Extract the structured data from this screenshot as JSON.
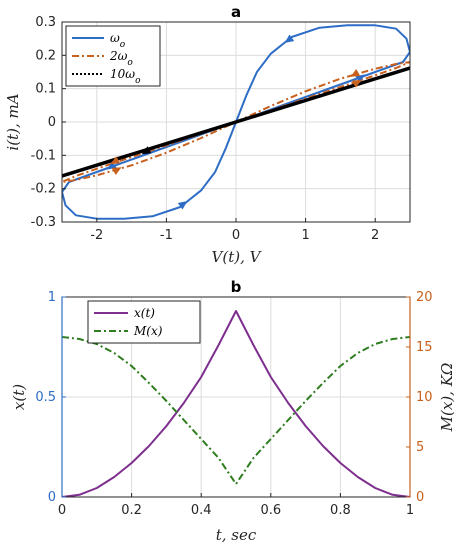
{
  "chart_data": [
    {
      "type": "line",
      "title": "a",
      "xlabel": "V(t),  V",
      "ylabel": "i(t),  mA",
      "xlim": [
        -2.5,
        2.5
      ],
      "ylim": [
        -0.3,
        0.3
      ],
      "xticks": [
        "-2",
        "-1",
        "0",
        "1",
        "2"
      ],
      "xtick_values": [
        -2,
        -1,
        0,
        1,
        2
      ],
      "yticks": [
        "-0.3",
        "-0.2",
        "-0.1",
        "0",
        "0.1",
        "0.2",
        "0.3"
      ],
      "ytick_values": [
        -0.3,
        -0.2,
        -0.1,
        0,
        0.1,
        0.2,
        0.3
      ],
      "grid": true,
      "legend_position": "top-left",
      "series": [
        {
          "name": "ω_o",
          "legend": "ωo",
          "color": "#2E6DC6",
          "style": "solid",
          "points": [
            [
              0,
              0
            ],
            [
              0.15,
              0.08
            ],
            [
              0.3,
              0.15
            ],
            [
              0.5,
              0.205
            ],
            [
              0.8,
              0.255
            ],
            [
              1.2,
              0.283
            ],
            [
              1.6,
              0.29
            ],
            [
              2,
              0.29
            ],
            [
              2.3,
              0.28
            ],
            [
              2.45,
              0.25
            ],
            [
              2.5,
              0.21
            ],
            [
              2.4,
              0.18
            ],
            [
              2.2,
              0.165
            ],
            [
              1.8,
              0.135
            ],
            [
              1.4,
              0.105
            ],
            [
              1,
              0.075
            ],
            [
              0.6,
              0.045
            ],
            [
              0.3,
              0.022
            ],
            [
              0,
              0
            ],
            [
              -0.15,
              -0.08
            ],
            [
              -0.3,
              -0.15
            ],
            [
              -0.5,
              -0.205
            ],
            [
              -0.8,
              -0.255
            ],
            [
              -1.2,
              -0.283
            ],
            [
              -1.6,
              -0.29
            ],
            [
              -2,
              -0.29
            ],
            [
              -2.3,
              -0.28
            ],
            [
              -2.45,
              -0.25
            ],
            [
              -2.5,
              -0.21
            ],
            [
              -2.4,
              -0.18
            ],
            [
              -2.2,
              -0.165
            ],
            [
              -1.8,
              -0.135
            ],
            [
              -1.4,
              -0.105
            ],
            [
              -1,
              -0.075
            ],
            [
              -0.6,
              -0.045
            ],
            [
              -0.3,
              -0.022
            ],
            [
              0,
              0
            ]
          ]
        },
        {
          "name": "2ω_o",
          "legend": "2ωo",
          "color": "#C8601E",
          "style": "dashdot",
          "points": [
            [
              0,
              0
            ],
            [
              0.5,
              0.048
            ],
            [
              1,
              0.092
            ],
            [
              1.5,
              0.13
            ],
            [
              2,
              0.16
            ],
            [
              2.3,
              0.174
            ],
            [
              2.5,
              0.18
            ],
            [
              2.3,
              0.162
            ],
            [
              2,
              0.14
            ],
            [
              1.5,
              0.105
            ],
            [
              1,
              0.07
            ],
            [
              0.5,
              0.035
            ],
            [
              0,
              0
            ],
            [
              -0.5,
              -0.048
            ],
            [
              -1,
              -0.092
            ],
            [
              -1.5,
              -0.13
            ],
            [
              -2,
              -0.16
            ],
            [
              -2.3,
              -0.174
            ],
            [
              -2.5,
              -0.18
            ],
            [
              -2.3,
              -0.162
            ],
            [
              -2,
              -0.14
            ],
            [
              -1.5,
              -0.105
            ],
            [
              -1,
              -0.07
            ],
            [
              -0.5,
              -0.035
            ],
            [
              0,
              0
            ]
          ]
        },
        {
          "name": "10ω_o",
          "legend": "10ωo",
          "color": "#000000",
          "style": "dotted",
          "points": [
            [
              -2.5,
              -0.162
            ],
            [
              2.5,
              0.162
            ]
          ]
        }
      ]
    },
    {
      "type": "line",
      "title": "b",
      "xlabel": "t,  sec",
      "ylabel_left": "x(t)",
      "ylabel_right": "M(x),  KΩ",
      "xlim": [
        0,
        1
      ],
      "ylim_left": [
        0,
        1
      ],
      "ylim_right": [
        0,
        20
      ],
      "xticks": [
        "0",
        "0.2",
        "0.4",
        "0.6",
        "0.8",
        "1"
      ],
      "xtick_values": [
        0,
        0.2,
        0.4,
        0.6,
        0.8,
        1
      ],
      "yticks_left": [
        "0",
        "0.5",
        "1"
      ],
      "ytick_values_left": [
        0,
        0.5,
        1
      ],
      "yticks_right": [
        "0",
        "5",
        "10",
        "15",
        "20"
      ],
      "ytick_values_right": [
        0,
        5,
        10,
        15,
        20
      ],
      "grid": true,
      "legend_position": "top-left",
      "series": [
        {
          "name": "x(t)",
          "axis": "left",
          "color": "#7E2F8E",
          "style": "solid",
          "x": [
            0,
            0.05,
            0.1,
            0.15,
            0.2,
            0.25,
            0.3,
            0.35,
            0.4,
            0.45,
            0.5,
            0.55,
            0.6,
            0.65,
            0.7,
            0.75,
            0.8,
            0.85,
            0.9,
            0.95,
            1
          ],
          "y": [
            0,
            0.011,
            0.045,
            0.1,
            0.17,
            0.255,
            0.355,
            0.47,
            0.6,
            0.76,
            0.93,
            0.76,
            0.6,
            0.47,
            0.355,
            0.255,
            0.17,
            0.1,
            0.045,
            0.011,
            0
          ]
        },
        {
          "name": "M(x)",
          "axis": "right",
          "color": "#2E7D1E",
          "style": "dashdot",
          "x": [
            0,
            0.05,
            0.1,
            0.15,
            0.2,
            0.25,
            0.3,
            0.35,
            0.4,
            0.45,
            0.5,
            0.55,
            0.6,
            0.65,
            0.7,
            0.75,
            0.8,
            0.85,
            0.9,
            0.95,
            1
          ],
          "y": [
            16,
            15.8,
            15.3,
            14.4,
            13.1,
            11.4,
            9.6,
            7.7,
            5.8,
            3.9,
            1.3,
            3.9,
            5.8,
            7.7,
            9.6,
            11.4,
            13.1,
            14.4,
            15.3,
            15.8,
            16
          ]
        }
      ]
    }
  ],
  "colors": {
    "left_axis": "#2E6DC6",
    "right_axis": "#C8601E",
    "grid": "#dcdcdc",
    "axes": "#262626"
  }
}
